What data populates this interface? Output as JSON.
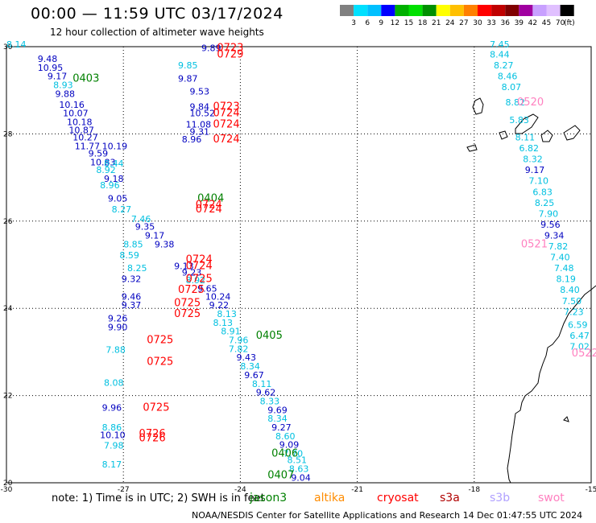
{
  "header": {
    "title": "00:00 — 11:59 UTC 03/17/2024",
    "subtitle": "12 hour collection of altimeter wave heights"
  },
  "colorbar": {
    "labels": [
      "3",
      "6",
      "9",
      "12",
      "15",
      "18",
      "21",
      "24",
      "27",
      "30",
      "33",
      "36",
      "39",
      "42",
      "45",
      "70"
    ],
    "unit": "(ft)",
    "colors": [
      "#808080",
      "#00e0ff",
      "#00c0ff",
      "#0000ff",
      "#00b000",
      "#00e000",
      "#009000",
      "#ffff00",
      "#ffc000",
      "#ff8000",
      "#ff0000",
      "#c00000",
      "#800000",
      "#a000a0",
      "#c8a0ff",
      "#e0c0ff",
      "#000000"
    ]
  },
  "map": {
    "lon_range": [
      -30,
      -15
    ],
    "lat_range": [
      20,
      30
    ],
    "x_ticks": [
      "-30",
      "-27",
      "-24",
      "-21",
      "-18",
      "-15"
    ],
    "y_ticks": [
      "30",
      "28",
      "26",
      "24",
      "22",
      "20"
    ],
    "grid": "dotted"
  },
  "series_colors": {
    "jason3": "#008000",
    "altika": "#ff8c00",
    "cryosat": "#ff0000",
    "s3a": "#b00000",
    "s3b": "#b0a0ff",
    "swot": "#ff80c0"
  },
  "passes": [
    {
      "label": "0723",
      "series": "cryosat",
      "lon": -24.6,
      "lat": 29.9
    },
    {
      "label": "0729",
      "series": "cryosat",
      "lon": -24.6,
      "lat": 29.75
    },
    {
      "label": "0403",
      "series": "jason3",
      "lon": -28.3,
      "lat": 29.2
    },
    {
      "label": "0723",
      "series": "cryosat",
      "lon": -24.7,
      "lat": 28.55
    },
    {
      "label": "0724",
      "series": "cryosat",
      "lon": -24.7,
      "lat": 28.4
    },
    {
      "label": "0724",
      "series": "cryosat",
      "lon": -24.7,
      "lat": 28.15
    },
    {
      "label": "0724",
      "series": "cryosat",
      "lon": -24.7,
      "lat": 27.8
    },
    {
      "label": "0404",
      "series": "jason3",
      "lon": -25.1,
      "lat": 26.45
    },
    {
      "label": "0724",
      "series": "cryosat",
      "lon": -25.15,
      "lat": 26.3
    },
    {
      "label": "0724",
      "series": "cryosat",
      "lon": -25.15,
      "lat": 26.2
    },
    {
      "label": "0724",
      "series": "cryosat",
      "lon": -25.4,
      "lat": 25.05
    },
    {
      "label": "0724",
      "series": "cryosat",
      "lon": -25.4,
      "lat": 24.9
    },
    {
      "label": "0725",
      "series": "cryosat",
      "lon": -25.4,
      "lat": 24.6
    },
    {
      "label": "0725",
      "series": "cryosat",
      "lon": -25.6,
      "lat": 24.35
    },
    {
      "label": "0725",
      "series": "cryosat",
      "lon": -25.7,
      "lat": 24.05
    },
    {
      "label": "0725",
      "series": "cryosat",
      "lon": -25.7,
      "lat": 23.8
    },
    {
      "label": "0405",
      "series": "jason3",
      "lon": -23.6,
      "lat": 23.3
    },
    {
      "label": "0725",
      "series": "cryosat",
      "lon": -26.4,
      "lat": 23.2
    },
    {
      "label": "0725",
      "series": "cryosat",
      "lon": -26.4,
      "lat": 22.7
    },
    {
      "label": "0725",
      "series": "cryosat",
      "lon": -26.5,
      "lat": 21.65
    },
    {
      "label": "0726",
      "series": "cryosat",
      "lon": -26.6,
      "lat": 21.05
    },
    {
      "label": "0726",
      "series": "cryosat",
      "lon": -26.6,
      "lat": 20.95
    },
    {
      "label": "0406",
      "series": "jason3",
      "lon": -23.2,
      "lat": 20.6
    },
    {
      "label": "0407",
      "series": "jason3",
      "lon": -23.3,
      "lat": 20.1
    },
    {
      "label": "0520",
      "series": "swot",
      "lon": -16.9,
      "lat": 28.65
    },
    {
      "label": "0521",
      "series": "swot",
      "lon": -16.8,
      "lat": 25.4
    },
    {
      "label": "0522",
      "series": "swot",
      "lon": -15.5,
      "lat": 22.9
    }
  ],
  "wave_values": [
    {
      "v": "8.14",
      "c": "#00c0e0",
      "lon": -30.0,
      "lat": 29.98
    },
    {
      "v": "9.48",
      "c": "#0000c0",
      "lon": -29.2,
      "lat": 29.65
    },
    {
      "v": "10.95",
      "c": "#0000c0",
      "lon": -29.2,
      "lat": 29.45
    },
    {
      "v": "9.17",
      "c": "#0000c0",
      "lon": -28.95,
      "lat": 29.25
    },
    {
      "v": "8.93",
      "c": "#00c0e0",
      "lon": -28.8,
      "lat": 29.05
    },
    {
      "v": "9.88",
      "c": "#0000c0",
      "lon": -28.75,
      "lat": 28.85
    },
    {
      "v": "10.16",
      "c": "#0000c0",
      "lon": -28.65,
      "lat": 28.6
    },
    {
      "v": "10.07",
      "c": "#0000c0",
      "lon": -28.55,
      "lat": 28.4
    },
    {
      "v": "10.18",
      "c": "#0000c0",
      "lon": -28.45,
      "lat": 28.2
    },
    {
      "v": "10.87",
      "c": "#0000c0",
      "lon": -28.4,
      "lat": 28.02
    },
    {
      "v": "10.27",
      "c": "#0000c0",
      "lon": -28.3,
      "lat": 27.85
    },
    {
      "v": "11.77",
      "c": "#0000c0",
      "lon": -28.25,
      "lat": 27.65
    },
    {
      "v": "10.19",
      "c": "#0000c0",
      "lon": -27.55,
      "lat": 27.65
    },
    {
      "v": "9.59",
      "c": "#0000c0",
      "lon": -27.9,
      "lat": 27.48
    },
    {
      "v": "10.83",
      "c": "#0000c0",
      "lon": -27.85,
      "lat": 27.28
    },
    {
      "v": "8.44",
      "c": "#00c0e0",
      "lon": -27.5,
      "lat": 27.25
    },
    {
      "v": "8.92",
      "c": "#00c0e0",
      "lon": -27.7,
      "lat": 27.1
    },
    {
      "v": "9.18",
      "c": "#0000c0",
      "lon": -27.5,
      "lat": 26.9
    },
    {
      "v": "8.96",
      "c": "#00c0e0",
      "lon": -27.6,
      "lat": 26.75
    },
    {
      "v": "9.05",
      "c": "#0000c0",
      "lon": -27.4,
      "lat": 26.45
    },
    {
      "v": "8.27",
      "c": "#00c0e0",
      "lon": -27.3,
      "lat": 26.2
    },
    {
      "v": "7.46",
      "c": "#00c0e0",
      "lon": -26.8,
      "lat": 25.98
    },
    {
      "v": "9.35",
      "c": "#0000c0",
      "lon": -26.7,
      "lat": 25.8
    },
    {
      "v": "9.17",
      "c": "#0000c0",
      "lon": -26.45,
      "lat": 25.6
    },
    {
      "v": "9.38",
      "c": "#0000c0",
      "lon": -26.2,
      "lat": 25.4
    },
    {
      "v": "8.85",
      "c": "#00c0e0",
      "lon": -27.0,
      "lat": 25.4
    },
    {
      "v": "8.59",
      "c": "#00c0e0",
      "lon": -27.1,
      "lat": 25.15
    },
    {
      "v": "9.13",
      "c": "#0000c0",
      "lon": -25.7,
      "lat": 24.9
    },
    {
      "v": "8.25",
      "c": "#00c0e0",
      "lon": -26.9,
      "lat": 24.85
    },
    {
      "v": "9.23",
      "c": "#0000c0",
      "lon": -25.5,
      "lat": 24.75
    },
    {
      "v": "8.92",
      "c": "#00c0e0",
      "lon": -25.4,
      "lat": 24.58
    },
    {
      "v": "9.32",
      "c": "#0000c0",
      "lon": -27.05,
      "lat": 24.6
    },
    {
      "v": "9.65",
      "c": "#0000c0",
      "lon": -25.1,
      "lat": 24.38
    },
    {
      "v": "9.46",
      "c": "#0000c0",
      "lon": -27.05,
      "lat": 24.2
    },
    {
      "v": "10.24",
      "c": "#0000c0",
      "lon": -24.9,
      "lat": 24.2
    },
    {
      "v": "9.22",
      "c": "#0000c0",
      "lon": -24.8,
      "lat": 24.0
    },
    {
      "v": "9.37",
      "c": "#0000c0",
      "lon": -27.05,
      "lat": 24.0
    },
    {
      "v": "8.13",
      "c": "#00c0e0",
      "lon": -24.6,
      "lat": 23.8
    },
    {
      "v": "9.26",
      "c": "#0000c0",
      "lon": -27.4,
      "lat": 23.7
    },
    {
      "v": "8.13",
      "c": "#00c0e0",
      "lon": -24.7,
      "lat": 23.6
    },
    {
      "v": "9.90",
      "c": "#0000c0",
      "lon": -27.4,
      "lat": 23.5
    },
    {
      "v": "8.91",
      "c": "#00c0e0",
      "lon": -24.5,
      "lat": 23.4
    },
    {
      "v": "7.96",
      "c": "#00c0e0",
      "lon": -24.3,
      "lat": 23.2
    },
    {
      "v": "7.82",
      "c": "#00c0e0",
      "lon": -24.3,
      "lat": 23.0
    },
    {
      "v": "7.88",
      "c": "#00c0e0",
      "lon": -27.45,
      "lat": 22.98
    },
    {
      "v": "9.43",
      "c": "#0000c0",
      "lon": -24.1,
      "lat": 22.8
    },
    {
      "v": "8.34",
      "c": "#00c0e0",
      "lon": -24.0,
      "lat": 22.6
    },
    {
      "v": "9.67",
      "c": "#0000c0",
      "lon": -23.9,
      "lat": 22.4
    },
    {
      "v": "8.11",
      "c": "#00c0e0",
      "lon": -23.7,
      "lat": 22.2
    },
    {
      "v": "8.08",
      "c": "#00c0e0",
      "lon": -27.5,
      "lat": 22.22
    },
    {
      "v": "9.62",
      "c": "#0000c0",
      "lon": -23.6,
      "lat": 22.0
    },
    {
      "v": "8.33",
      "c": "#00c0e0",
      "lon": -23.5,
      "lat": 21.8
    },
    {
      "v": "9.96",
      "c": "#0000c0",
      "lon": -27.55,
      "lat": 21.65
    },
    {
      "v": "9.69",
      "c": "#0000c0",
      "lon": -23.3,
      "lat": 21.6
    },
    {
      "v": "8.34",
      "c": "#00c0e0",
      "lon": -23.3,
      "lat": 21.4
    },
    {
      "v": "8.86",
      "c": "#00c0e0",
      "lon": -27.55,
      "lat": 21.2
    },
    {
      "v": "9.27",
      "c": "#0000c0",
      "lon": -23.2,
      "lat": 21.2
    },
    {
      "v": "10.10",
      "c": "#0000c0",
      "lon": -27.6,
      "lat": 21.02
    },
    {
      "v": "8.60",
      "c": "#00c0e0",
      "lon": -23.1,
      "lat": 21.0
    },
    {
      "v": "9.09",
      "c": "#0000c0",
      "lon": -23.0,
      "lat": 20.8
    },
    {
      "v": "7.98",
      "c": "#00c0e0",
      "lon": -27.5,
      "lat": 20.78
    },
    {
      "v": "7.70",
      "c": "#00c0e0",
      "lon": -22.9,
      "lat": 20.6
    },
    {
      "v": "8.51",
      "c": "#00c0e0",
      "lon": -22.8,
      "lat": 20.45
    },
    {
      "v": "8.17",
      "c": "#00c0e0",
      "lon": -27.55,
      "lat": 20.35
    },
    {
      "v": "8.63",
      "c": "#00c0e0",
      "lon": -22.75,
      "lat": 20.25
    },
    {
      "v": "9.04",
      "c": "#0000c0",
      "lon": -22.7,
      "lat": 20.05
    },
    {
      "v": "9.89",
      "c": "#0000c0",
      "lon": -25.0,
      "lat": 29.9
    },
    {
      "v": "9.85",
      "c": "#00c0e0",
      "lon": -25.6,
      "lat": 29.5
    },
    {
      "v": "9.87",
      "c": "#0000c0",
      "lon": -25.6,
      "lat": 29.2
    },
    {
      "v": "9.53",
      "c": "#0000c0",
      "lon": -25.3,
      "lat": 28.9
    },
    {
      "v": "9.84",
      "c": "#0000c0",
      "lon": -25.3,
      "lat": 28.55
    },
    {
      "v": "10.52",
      "c": "#0000c0",
      "lon": -25.3,
      "lat": 28.4
    },
    {
      "v": "11.08",
      "c": "#0000c0",
      "lon": -25.4,
      "lat": 28.15
    },
    {
      "v": "9.31",
      "c": "#0000c0",
      "lon": -25.3,
      "lat": 27.98
    },
    {
      "v": "8.96",
      "c": "#0000c0",
      "lon": -25.5,
      "lat": 27.8
    },
    {
      "v": "7.45",
      "c": "#00c0e0",
      "lon": -17.6,
      "lat": 29.98
    },
    {
      "v": "8.44",
      "c": "#00c0e0",
      "lon": -17.6,
      "lat": 29.75
    },
    {
      "v": "8.27",
      "c": "#00c0e0",
      "lon": -17.5,
      "lat": 29.5
    },
    {
      "v": "8.46",
      "c": "#00c0e0",
      "lon": -17.4,
      "lat": 29.25
    },
    {
      "v": "8.07",
      "c": "#00c0e0",
      "lon": -17.3,
      "lat": 29.0
    },
    {
      "v": "8.82",
      "c": "#00c0e0",
      "lon": -17.2,
      "lat": 28.65
    },
    {
      "v": "5.83",
      "c": "#00c0e0",
      "lon": -17.1,
      "lat": 28.25
    },
    {
      "v": "8.11",
      "c": "#00c0e0",
      "lon": -16.95,
      "lat": 27.85
    },
    {
      "v": "6.82",
      "c": "#00c0e0",
      "lon": -16.85,
      "lat": 27.6
    },
    {
      "v": "8.32",
      "c": "#00c0e0",
      "lon": -16.75,
      "lat": 27.35
    },
    {
      "v": "9.17",
      "c": "#0000c0",
      "lon": -16.7,
      "lat": 27.1
    },
    {
      "v": "7.10",
      "c": "#00c0e0",
      "lon": -16.6,
      "lat": 26.85
    },
    {
      "v": "6.83",
      "c": "#00c0e0",
      "lon": -16.5,
      "lat": 26.6
    },
    {
      "v": "8.25",
      "c": "#00c0e0",
      "lon": -16.45,
      "lat": 26.35
    },
    {
      "v": "7.90",
      "c": "#00c0e0",
      "lon": -16.35,
      "lat": 26.1
    },
    {
      "v": "9.56",
      "c": "#0000c0",
      "lon": -16.3,
      "lat": 25.85
    },
    {
      "v": "9.34",
      "c": "#0000c0",
      "lon": -16.2,
      "lat": 25.6
    },
    {
      "v": "7.82",
      "c": "#00c0e0",
      "lon": -16.1,
      "lat": 25.35
    },
    {
      "v": "7.40",
      "c": "#00c0e0",
      "lon": -16.05,
      "lat": 25.1
    },
    {
      "v": "7.48",
      "c": "#00c0e0",
      "lon": -15.95,
      "lat": 24.85
    },
    {
      "v": "8.19",
      "c": "#00c0e0",
      "lon": -15.9,
      "lat": 24.6
    },
    {
      "v": "8.40",
      "c": "#00c0e0",
      "lon": -15.8,
      "lat": 24.35
    },
    {
      "v": "7.50",
      "c": "#00c0e0",
      "lon": -15.75,
      "lat": 24.1
    },
    {
      "v": "7.23",
      "c": "#00c0e0",
      "lon": -15.7,
      "lat": 23.85
    },
    {
      "v": "6.59",
      "c": "#00c0e0",
      "lon": -15.6,
      "lat": 23.55
    },
    {
      "v": "6.47",
      "c": "#00c0e0",
      "lon": -15.55,
      "lat": 23.3
    },
    {
      "v": "7.02",
      "c": "#00c0e0",
      "lon": -15.55,
      "lat": 23.05
    }
  ],
  "note": "note: 1) Time is in UTC; 2) SWH is in feet",
  "legend": [
    {
      "name": "jason3",
      "color": "#008000"
    },
    {
      "name": "altika",
      "color": "#ff8c00"
    },
    {
      "name": "cryosat",
      "color": "#ff0000"
    },
    {
      "name": "s3a",
      "color": "#b00000"
    },
    {
      "name": "s3b",
      "color": "#b0a0ff"
    },
    {
      "name": "swot",
      "color": "#ff80c0"
    }
  ],
  "footer": "NOAA/NESDIS Center for Satellite Applications and Research    14 Dec 01:47:55 UTC 2024"
}
